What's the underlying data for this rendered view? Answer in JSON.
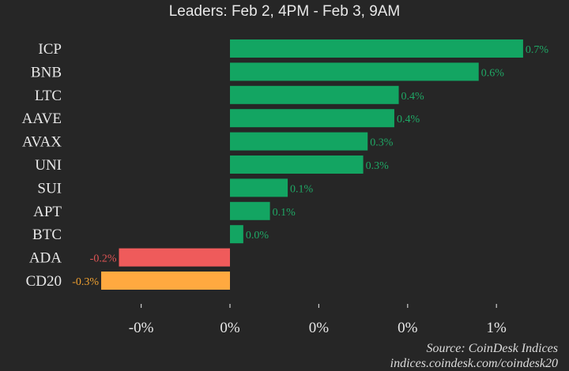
{
  "chart_data": {
    "type": "bar",
    "orientation": "horizontal",
    "title": "Leaders: Feb 2, 4PM - Feb 3, 9AM",
    "categories": [
      "ICP",
      "BNB",
      "LTC",
      "AAVE",
      "AVAX",
      "UNI",
      "SUI",
      "APT",
      "BTC",
      "ADA",
      "CD20"
    ],
    "values": [
      0.66,
      0.56,
      0.38,
      0.37,
      0.31,
      0.3,
      0.13,
      0.09,
      0.03,
      -0.25,
      -0.29
    ],
    "data_labels": [
      "0.7%",
      "0.6%",
      "0.4%",
      "0.4%",
      "0.3%",
      "0.3%",
      "0.1%",
      "0.1%",
      "0.0%",
      "-0.2%",
      "-0.3%"
    ],
    "bar_colors": [
      "#13a562",
      "#13a562",
      "#13a562",
      "#13a562",
      "#13a562",
      "#13a562",
      "#13a562",
      "#13a562",
      "#13a562",
      "#ef5b5b",
      "#ffa940"
    ],
    "label_colors": [
      "#1fa865",
      "#1fa865",
      "#1fa865",
      "#1fa865",
      "#1fa865",
      "#1fa865",
      "#1fa865",
      "#1fa865",
      "#1fa865",
      "#e05555",
      "#f0a030"
    ],
    "xticks": [
      -0.2,
      0,
      0.2,
      0.4,
      0.6
    ],
    "xtick_labels": [
      "-0%",
      "0%",
      "0%",
      "0%",
      "1%"
    ],
    "xlim": [
      -0.49,
      0.74
    ],
    "grid": false,
    "xlabel": "",
    "ylabel": ""
  },
  "footer": {
    "source": "Source: CoinDesk Indices",
    "url": "indices.coindesk.com/coindesk20"
  },
  "colors": {
    "background": "#262626",
    "text": "#e8e8e8"
  }
}
